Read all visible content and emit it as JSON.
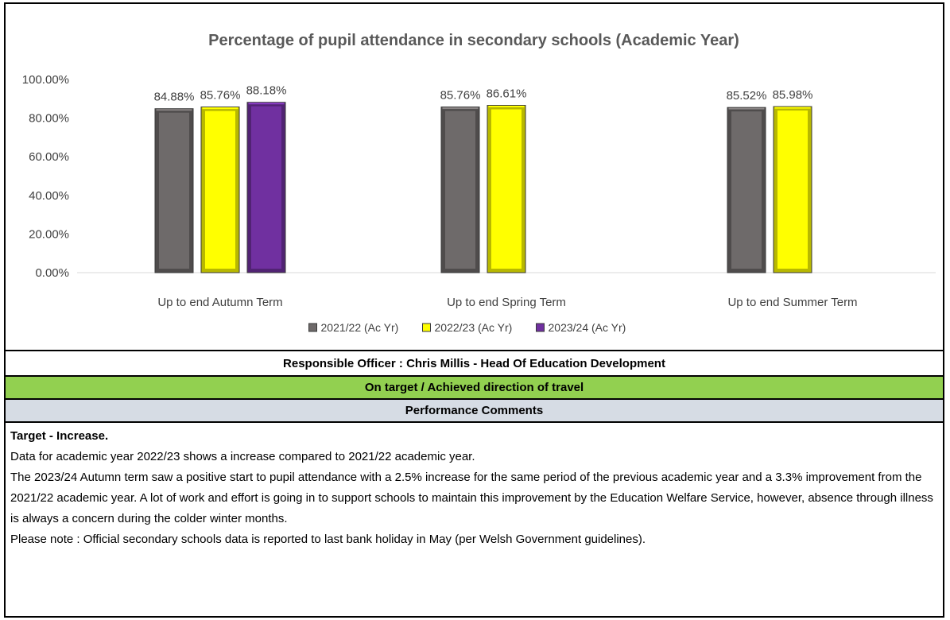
{
  "chart_data": {
    "type": "bar",
    "title": "Percentage of pupil attendance in secondary schools (Academic Year)",
    "categories": [
      "Up to end Autumn Term",
      "Up to end Spring Term",
      "Up to end Summer Term"
    ],
    "series": [
      {
        "name": "2021/22 (Ac Yr)",
        "color": "#6e6a6a",
        "values": [
          84.88,
          85.76,
          85.52
        ],
        "labels": [
          "84.88%",
          "85.76%",
          "85.52%"
        ]
      },
      {
        "name": "2022/23 (Ac Yr)",
        "color": "#ffff00",
        "values": [
          85.76,
          86.61,
          85.98
        ],
        "labels": [
          "85.76%",
          "86.61%",
          "85.98%"
        ]
      },
      {
        "name": "2023/24 (Ac Yr)",
        "color": "#7030a0",
        "values": [
          88.18,
          null,
          null
        ],
        "labels": [
          "88.18%",
          null,
          null
        ]
      }
    ],
    "yticks": [
      "0.00%",
      "20.00%",
      "40.00%",
      "60.00%",
      "80.00%",
      "100.00%"
    ],
    "ylim": [
      0,
      100
    ],
    "legend_position": "bottom",
    "grid": false
  },
  "officer": "Responsible Officer :   Chris Millis  -  Head Of Education Development",
  "status": "On target / Achieved direction of travel",
  "performance_heading": "Performance Comments",
  "comments": {
    "heading": "Target - Increase.",
    "lines": [
      "Data for academic year 2022/23 shows a increase compared to 2021/22 academic year.",
      "The 2023/24 Autumn term saw a positive start to pupil attendance with a 2.5% increase for the same period of the previous academic year and a 3.3% improvement from the 2021/22 academic year.   A lot of work and effort is going in to support schools to maintain this improvement by the Education Welfare Service, however, absence through illness is always a concern during the colder winter months.",
      "Please note : Official secondary schools data is reported to last bank holiday in May (per Welsh Government guidelines)."
    ]
  }
}
